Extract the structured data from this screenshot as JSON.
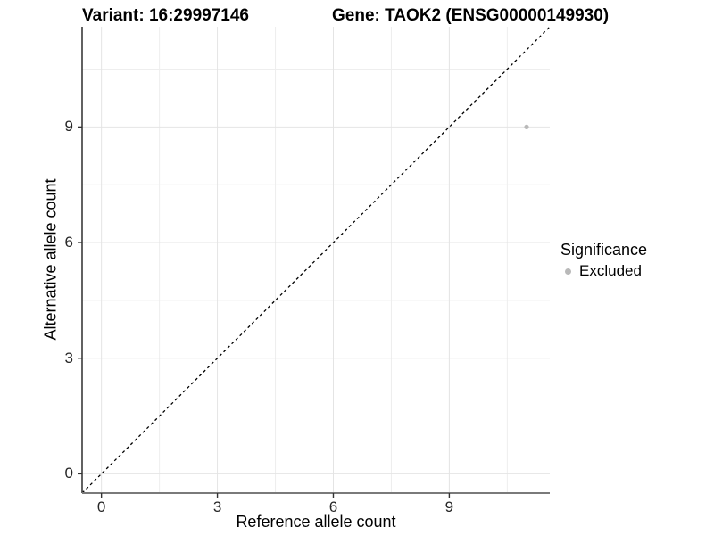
{
  "chart_data": {
    "type": "scatter",
    "title_left": "Variant: 16:29997146",
    "title_right": "Gene: TAOK2 (ENSG00000149930)",
    "xlabel": "Reference allele count",
    "ylabel": "Alternative allele count",
    "xlim": [
      -0.5,
      11.6
    ],
    "ylim": [
      -0.5,
      11.6
    ],
    "x_ticks": [
      0,
      3,
      6,
      9
    ],
    "y_ticks": [
      0,
      3,
      6,
      9
    ],
    "x_minor_ticks": [
      1.5,
      4.5,
      7.5,
      10.5
    ],
    "y_minor_ticks": [
      1.5,
      4.5,
      7.5,
      10.5
    ],
    "grid": true,
    "points": [
      {
        "x": 11,
        "y": 9,
        "series": "Excluded"
      }
    ],
    "reference_line": {
      "kind": "identity",
      "style": "dashed",
      "color": "#000000"
    },
    "legend": {
      "title": "Significance",
      "position": "right",
      "entries": [
        {
          "label": "Excluded",
          "color": "#b9b9b9"
        }
      ]
    },
    "colors": {
      "background": "#ffffff",
      "point": "#b9b9b9",
      "grid_major": "#e4e4e4",
      "grid_minor": "#eeeeee",
      "axis_line_left": "#3a3a3a",
      "axis_line_bottom": "#7a7a7a",
      "tick_mark": "#333333"
    }
  }
}
